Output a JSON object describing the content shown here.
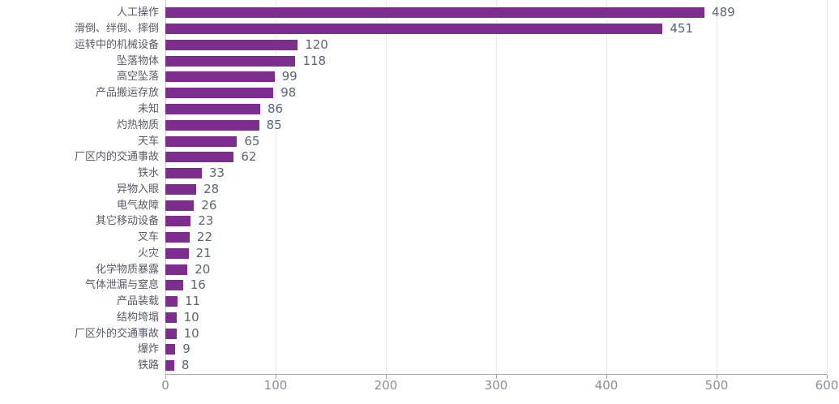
{
  "chart_data": {
    "type": "bar",
    "orientation": "horizontal",
    "title": "",
    "xlabel": "",
    "ylabel": "",
    "categories": [
      "人工操作",
      "滑倒、绊倒、摔倒",
      "运转中的机械设备",
      "坠落物体",
      "高空坠落",
      "产品搬运存放",
      "未知",
      "灼热物质",
      "天车",
      "厂区内的交通事故",
      "铁水",
      "异物入眼",
      "电气故障",
      "其它移动设备",
      "叉车",
      "火灾",
      "化学物质暴露",
      "气体泄漏与窒息",
      "产品装载",
      "结构垮塌",
      "厂区外的交通事故",
      "爆炸",
      "铁路"
    ],
    "values": [
      489,
      451,
      120,
      118,
      99,
      98,
      86,
      85,
      65,
      62,
      33,
      28,
      26,
      23,
      22,
      21,
      20,
      16,
      11,
      10,
      10,
      9,
      8
    ],
    "xlim": [
      0,
      600
    ],
    "xticks": [
      0,
      100,
      200,
      300,
      400,
      500,
      600
    ],
    "grid": "vertical-light",
    "legend": "none",
    "data_labels": "end-of-bar",
    "colors": {
      "bar": "#7C2D8E",
      "category_label": "#57596D",
      "value_label": "#5A6478",
      "axis_line": "#A6A6A6",
      "tick_label": "#878E9C",
      "gridline": "#ECECF2",
      "background": "#FFFFFF"
    }
  }
}
